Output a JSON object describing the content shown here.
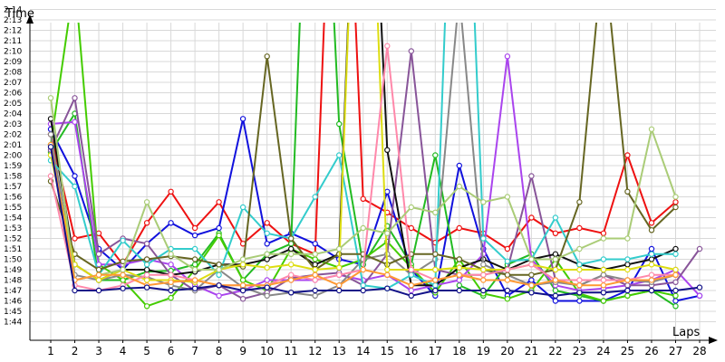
{
  "chart_data": {
    "type": "line",
    "title": "",
    "xlabel": "Laps",
    "ylabel": "Time",
    "grid": true,
    "legend": "none",
    "x": [
      1,
      2,
      3,
      4,
      5,
      6,
      7,
      8,
      9,
      10,
      11,
      12,
      13,
      14,
      15,
      16,
      17,
      18,
      19,
      20,
      21,
      22,
      23,
      24,
      25,
      26,
      27,
      28
    ],
    "y_tick_labels": [
      "1:44",
      "1:45",
      "1:46",
      "1:47",
      "1:48",
      "1:49",
      "1:50",
      "1:51",
      "1:52",
      "1:53",
      "1:54",
      "1:55",
      "1:56",
      "1:57",
      "1:58",
      "1:59",
      "2:00",
      "2:01",
      "2:02",
      "2:03",
      "2:04",
      "2:05",
      "2:06",
      "2:07",
      "2:08",
      "2:09",
      "2:10",
      "2:11",
      "2:12",
      "2:13",
      "2:14"
    ],
    "ylim_seconds": [
      103,
      136
    ],
    "series": [
      {
        "color": "#ee1111",
        "values": [
          122,
          112,
          112.5,
          109.5,
          113.5,
          116.5,
          113,
          115.5,
          111.5,
          113.5,
          111.5,
          110.5,
          170,
          115.8,
          114.5,
          113,
          111.6,
          113,
          112.5,
          111,
          114,
          112.5,
          113,
          112.5,
          120,
          113.5,
          115.5,
          null
        ]
      },
      {
        "color": "#1111dd",
        "values": [
          122.5,
          118,
          111,
          109,
          111.5,
          113.5,
          112.3,
          113,
          123.5,
          111.5,
          112.5,
          111.5,
          110,
          109.5,
          116.5,
          109,
          106.5,
          119,
          111,
          106.5,
          108,
          106,
          106,
          106,
          107,
          111,
          106,
          106.5
        ]
      },
      {
        "color": "#22bb22",
        "values": [
          120.3,
          124,
          108,
          108,
          108.8,
          108.9,
          109.5,
          112.5,
          108,
          110.5,
          111.5,
          170,
          123,
          109.5,
          113.2,
          109.5,
          120,
          107.5,
          106.5,
          109.5,
          110.5,
          107,
          106.5,
          106,
          106.5,
          107,
          105.5,
          null
        ]
      },
      {
        "color": "#44cc00",
        "values": [
          121,
          137,
          109.5,
          108,
          105.5,
          106.3,
          109,
          112.3,
          108,
          107,
          111,
          110,
          109.2,
          110,
          111.7,
          109.2,
          106.8,
          110,
          106.7,
          106.2,
          107,
          110,
          106.7,
          106,
          106.5,
          107,
          106.5,
          null
        ]
      },
      {
        "color": "#aa44ee",
        "values": [
          123,
          123.2,
          109.5,
          109.5,
          110,
          109.5,
          107.5,
          106.5,
          107,
          108,
          108,
          108,
          108.5,
          108,
          108.5,
          107,
          107.5,
          108,
          110.5,
          129.5,
          110,
          107.5,
          107,
          107.2,
          107.5,
          108,
          109,
          106.5
        ]
      },
      {
        "color": "#885599",
        "values": [
          120.5,
          125.5,
          110.5,
          112,
          111.5,
          108.5,
          107,
          107.5,
          106.2,
          106.8,
          108.2,
          108.5,
          108.7,
          107.5,
          110.5,
          130,
          109,
          108.5,
          108.5,
          109,
          118,
          108,
          107.5,
          108.5,
          107.5,
          107.5,
          107.8,
          111
        ]
      },
      {
        "color": "#111111",
        "values": [
          123.5,
          109.5,
          108,
          109,
          109,
          108.5,
          108.8,
          109.5,
          109.5,
          110,
          111,
          109.5,
          110.5,
          170,
          120.5,
          107.5,
          107.5,
          109.2,
          110,
          109,
          110,
          110.5,
          109.5,
          109,
          109.5,
          110,
          111,
          null
        ]
      },
      {
        "color": "#888888",
        "values": [
          122,
          108.5,
          108,
          108.5,
          108.3,
          107.5,
          107,
          109,
          107.3,
          106.5,
          106.8,
          106.5,
          107.5,
          110,
          110.5,
          108.5,
          110,
          135.5,
          109.5,
          108.5,
          107.5,
          107.8,
          107.5,
          108.5,
          108,
          107.8,
          108.5,
          null
        ]
      },
      {
        "color": "#33cccc",
        "values": [
          119.5,
          117,
          108.5,
          111.8,
          109.5,
          111,
          111,
          108.5,
          115,
          112.5,
          112,
          116,
          120,
          107.5,
          107.2,
          108.5,
          107.5,
          170,
          112,
          109.8,
          110,
          114,
          109.5,
          110,
          110,
          110.5,
          110.5,
          null
        ]
      },
      {
        "color": "#666622",
        "values": [
          117.5,
          110.5,
          109,
          109.8,
          110,
          110.3,
          110,
          109.5,
          109.3,
          129.5,
          112,
          109,
          110.5,
          110.5,
          109.5,
          110.5,
          110.5,
          110,
          109,
          108.5,
          108.5,
          109,
          115.5,
          140,
          116.5,
          112.8,
          115,
          null
        ]
      },
      {
        "color": "#dddd11",
        "values": [
          120,
          109.5,
          108,
          109,
          108,
          108,
          107.8,
          109,
          109.5,
          109.2,
          109.5,
          109,
          109.2,
          170,
          109,
          109,
          109,
          109.2,
          109,
          109,
          109.5,
          109,
          109,
          109,
          109,
          109.5,
          109,
          null
        ]
      },
      {
        "color": "#ff88aa",
        "values": [
          118,
          107.5,
          107,
          107.5,
          108.5,
          108.5,
          108,
          107.5,
          107.5,
          107.5,
          108.5,
          108,
          108.5,
          109,
          130.5,
          109,
          108,
          108.5,
          108.5,
          109,
          109.5,
          108,
          108,
          108,
          108,
          108.5,
          108.5,
          null
        ]
      },
      {
        "color": "#aacc77",
        "values": [
          125.5,
          108,
          108.5,
          109,
          115.5,
          110.5,
          109,
          109,
          110,
          110.5,
          110.5,
          110.5,
          111,
          113,
          112.5,
          115,
          114.5,
          117,
          115.5,
          116,
          110,
          110,
          111,
          112,
          112,
          122.5,
          116,
          null
        ]
      },
      {
        "color": "#ff9933",
        "values": [
          121,
          108,
          108.5,
          108.5,
          107.5,
          107.8,
          108,
          107.5,
          107.5,
          107.5,
          108,
          108.5,
          107.5,
          109,
          108.5,
          107.5,
          108,
          108.5,
          108,
          108,
          107.5,
          108,
          107.5,
          107.5,
          108,
          108,
          108.5,
          null
        ]
      },
      {
        "color": "#111188",
        "values": [
          120.8,
          107,
          107,
          107.2,
          107.3,
          107,
          107.2,
          107.5,
          107,
          107.3,
          106.8,
          107,
          107,
          107,
          107.2,
          106.5,
          107,
          107,
          107,
          107,
          106.8,
          106.5,
          106.8,
          106.8,
          107,
          107,
          107,
          107.3
        ]
      }
    ]
  }
}
